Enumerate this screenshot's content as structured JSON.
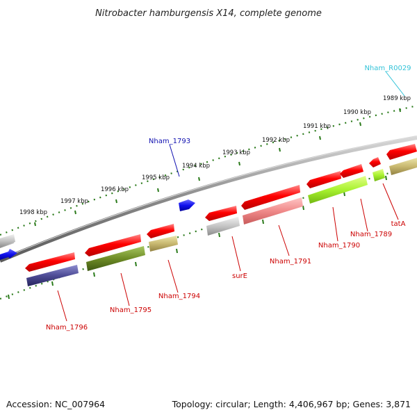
{
  "title": "Nitrobacter hamburgensis X14, complete genome",
  "footer": {
    "accession": "Accession: NC_007964",
    "summary": "Topology: circular; Length: 4,406,967 bp; Genes: 3,871"
  },
  "ticks": [
    "1989 kbp",
    "1990 kbp",
    "1991 kbp",
    "1992 kbp",
    "1993 kbp",
    "1994 kbp",
    "1995 kbp",
    "1996 kbp",
    "1997 kbp",
    "1998 kbp"
  ],
  "gene_labels": {
    "nham_r0029": "Nham_R0029",
    "nham_1793": "Nham_1793",
    "tatA": "tatA",
    "nham_1789": "Nham_1789",
    "nham_1790": "Nham_1790",
    "nham_1791": "Nham_1791",
    "surE": "surE",
    "nham_1794": "Nham_1794",
    "nham_1795": "Nham_1795",
    "nham_1796": "Nham_1796"
  },
  "colors": {
    "forward_gene": "#ff0000",
    "rrna_label": "#33c3d8",
    "reverse_label": "#1010b0",
    "gene_label": "#cc0000",
    "backbone": "#888888",
    "tick_mark": "#2a7a1a"
  }
}
